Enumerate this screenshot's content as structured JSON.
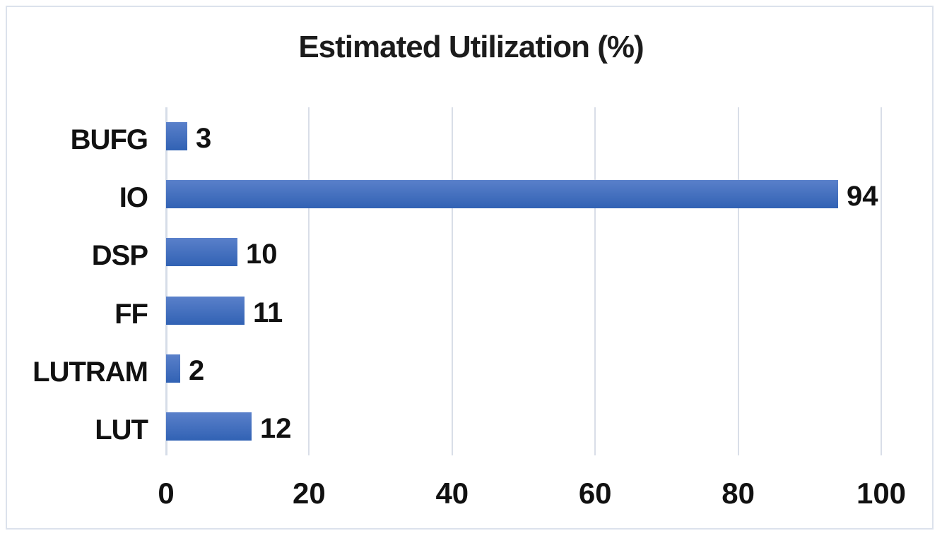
{
  "chart_data": {
    "type": "bar",
    "orientation": "horizontal",
    "title": "Estimated Utilization (%)",
    "categories": [
      "BUFG",
      "IO",
      "DSP",
      "FF",
      "LUTRAM",
      "LUT"
    ],
    "values": [
      3,
      94,
      10,
      11,
      2,
      12
    ],
    "data_labels": [
      "3",
      "94",
      "10",
      "11",
      "2",
      "12"
    ],
    "x_ticks": [
      0,
      20,
      40,
      60,
      80,
      100
    ],
    "xlim": [
      0,
      100
    ],
    "grid": "vertical-gridlines-on",
    "legend": "none",
    "colors": {
      "bar_gradient_top": "#5A80CA",
      "bar_gradient_bottom": "#3162B4",
      "gridline": "#d9dee8",
      "axis_line": "#d6dde8",
      "frame_border": "#dce2ec",
      "text": "#111111",
      "background": "#ffffff"
    }
  }
}
